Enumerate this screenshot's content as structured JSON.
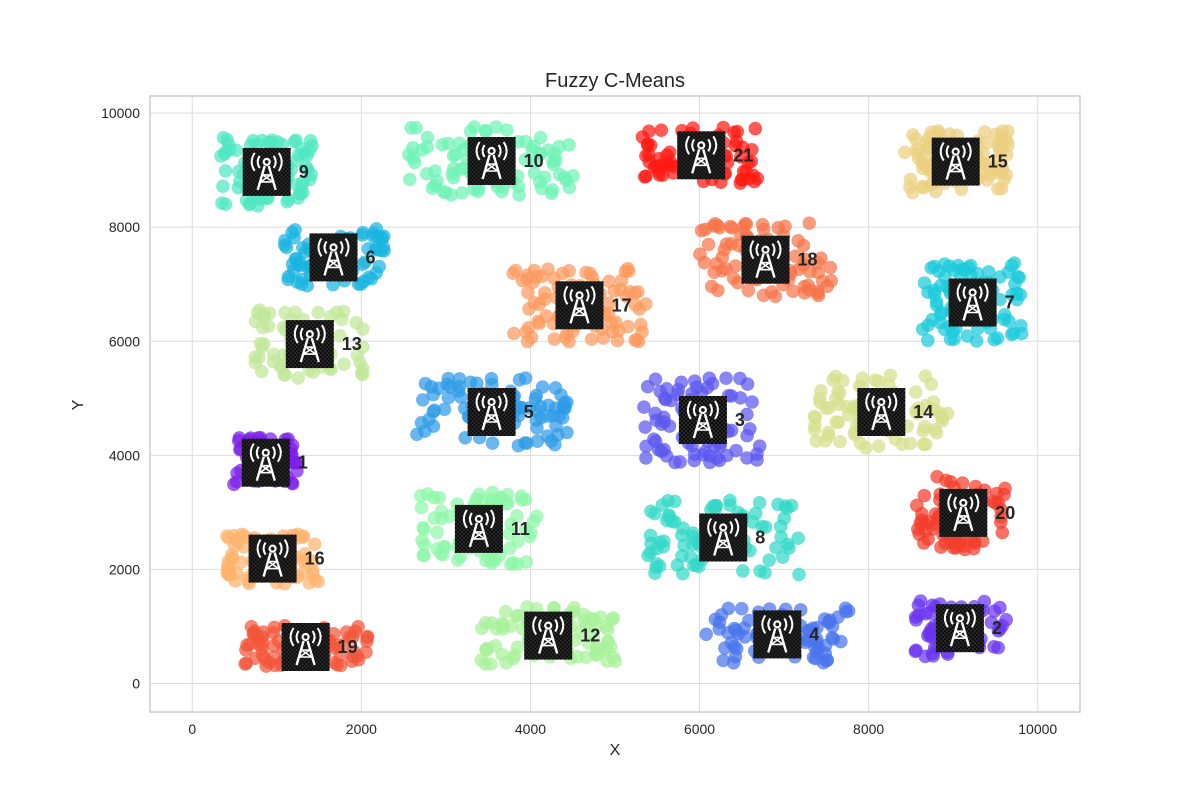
{
  "chart_data": {
    "type": "scatter",
    "title": "Fuzzy C-Means",
    "xlabel": "X",
    "ylabel": "Y",
    "xlim": [
      -500,
      10500
    ],
    "ylim": [
      -500,
      10300
    ],
    "grid": true,
    "x_ticks": [
      "0",
      "2000",
      "4000",
      "6000",
      "8000",
      "10000"
    ],
    "y_ticks": [
      "0",
      "2000",
      "4000",
      "6000",
      "8000",
      "10000"
    ],
    "x_tick_values": [
      0,
      2000,
      4000,
      6000,
      8000,
      10000
    ],
    "y_tick_values": [
      0,
      2000,
      4000,
      6000,
      8000,
      10000
    ],
    "icon": "radio-tower-icon",
    "clusters": [
      {
        "label": "1",
        "center": [
          870,
          3870
        ],
        "color": "#7d1ee8",
        "spread": [
          380,
          450
        ],
        "n": 70
      },
      {
        "label": "2",
        "center": [
          9080,
          970
        ],
        "color": "#6a35f0",
        "spread": [
          550,
          500
        ],
        "n": 65
      },
      {
        "label": "3",
        "center": [
          6040,
          4620
        ],
        "color": "#5b58f0",
        "spread": [
          700,
          750
        ],
        "n": 80
      },
      {
        "label": "4",
        "center": [
          6920,
          860
        ],
        "color": "#4a75ec",
        "spread": [
          850,
          500
        ],
        "n": 75
      },
      {
        "label": "5",
        "center": [
          3540,
          4760
        ],
        "color": "#2f9be8",
        "spread": [
          900,
          600
        ],
        "n": 90
      },
      {
        "label": "6",
        "center": [
          1670,
          7470
        ],
        "color": "#1ab4e0",
        "spread": [
          600,
          500
        ],
        "n": 75
      },
      {
        "label": "7",
        "center": [
          9230,
          6680
        ],
        "color": "#1bcadb",
        "spread": [
          600,
          700
        ],
        "n": 80
      },
      {
        "label": "8",
        "center": [
          6280,
          2560
        ],
        "color": "#33d8c8",
        "spread": [
          900,
          650
        ],
        "n": 85
      },
      {
        "label": "9",
        "center": [
          880,
          8970
        ],
        "color": "#4fe8c2",
        "spread": [
          550,
          600
        ],
        "n": 80
      },
      {
        "label": "10",
        "center": [
          3540,
          9160
        ],
        "color": "#6ef3b5",
        "spread": [
          1000,
          600
        ],
        "n": 90
      },
      {
        "label": "11",
        "center": [
          3390,
          2710
        ],
        "color": "#8ef7a8",
        "spread": [
          700,
          650
        ],
        "n": 80
      },
      {
        "label": "12",
        "center": [
          4210,
          840
        ],
        "color": "#a8f19a",
        "spread": [
          800,
          500
        ],
        "n": 80
      },
      {
        "label": "13",
        "center": [
          1390,
          5950
        ],
        "color": "#c0e898",
        "spread": [
          650,
          600
        ],
        "n": 70
      },
      {
        "label": "14",
        "center": [
          8150,
          4760
        ],
        "color": "#d6df8c",
        "spread": [
          800,
          650
        ],
        "n": 80
      },
      {
        "label": "15",
        "center": [
          9030,
          9150
        ],
        "color": "#ecd080",
        "spread": [
          650,
          550
        ],
        "n": 90
      },
      {
        "label": "16",
        "center": [
          950,
          2190
        ],
        "color": "#fdb46e",
        "spread": [
          550,
          450
        ],
        "n": 65
      },
      {
        "label": "17",
        "center": [
          4580,
          6630
        ],
        "color": "#fc9a5e",
        "spread": [
          800,
          650
        ],
        "n": 85
      },
      {
        "label": "18",
        "center": [
          6780,
          7430
        ],
        "color": "#f7744a",
        "spread": [
          800,
          650
        ],
        "n": 85
      },
      {
        "label": "19",
        "center": [
          1340,
          640
        ],
        "color": "#f2563a",
        "spread": [
          750,
          380
        ],
        "n": 80
      },
      {
        "label": "20",
        "center": [
          9120,
          2990
        ],
        "color": "#f43d2b",
        "spread": [
          550,
          650
        ],
        "n": 70
      },
      {
        "label": "21",
        "center": [
          6020,
          9260
        ],
        "color": "#ff1b14",
        "spread": [
          700,
          500
        ],
        "n": 75
      }
    ]
  }
}
